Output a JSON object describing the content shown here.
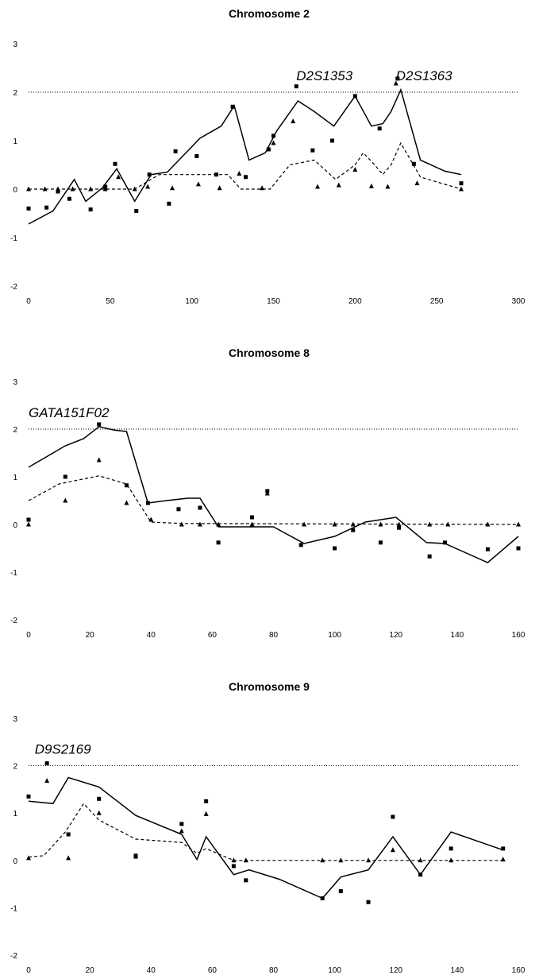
{
  "chart_data": [
    {
      "type": "line",
      "title": "Chromosome 2",
      "xlabel": "",
      "ylabel": "",
      "xlim": [
        0,
        300
      ],
      "ylim": [
        -2,
        3
      ],
      "xticks": [
        "0",
        "50",
        "100",
        "150",
        "200",
        "250",
        "300"
      ],
      "yticks": [
        "3",
        "2",
        "1",
        "0",
        "-1",
        "-2"
      ],
      "threshold": 2,
      "annotations": [
        {
          "text": "D2S1353",
          "x": 164,
          "y": 2.25
        },
        {
          "text": "D2S1363",
          "x": 225,
          "y": 2.25
        }
      ],
      "series": [
        {
          "style": "solid",
          "x": [
            0,
            15,
            28,
            35,
            45,
            54,
            65,
            75,
            85,
            105,
            118,
            126,
            135,
            145,
            152,
            165,
            175,
            187,
            200,
            210,
            217,
            222,
            228,
            240,
            255,
            265
          ],
          "y": [
            -0.72,
            -0.45,
            0.2,
            -0.25,
            0.02,
            0.42,
            -0.25,
            0.3,
            0.35,
            1.05,
            1.3,
            1.72,
            0.6,
            0.75,
            1.2,
            1.82,
            1.6,
            1.3,
            1.92,
            1.3,
            1.35,
            1.6,
            2.05,
            0.6,
            0.37,
            0.3
          ]
        },
        {
          "style": "dashed",
          "x": [
            0,
            28,
            35,
            45,
            54,
            65,
            80,
            90,
            100,
            115,
            122,
            130,
            140,
            148,
            160,
            175,
            188,
            200,
            205,
            212,
            217,
            222,
            228,
            240,
            265
          ],
          "y": [
            0,
            0,
            0,
            0,
            0,
            0,
            0.3,
            0.3,
            0.3,
            0.3,
            0.3,
            0,
            0,
            0,
            0.5,
            0.6,
            0.2,
            0.5,
            0.75,
            0.5,
            0.3,
            0.5,
            0.95,
            0.25,
            0
          ]
        },
        {
          "marker": "square",
          "x": [
            0,
            11,
            18,
            25,
            38,
            47,
            53,
            66,
            74,
            86,
            90,
            103,
            115,
            125,
            133,
            147,
            150,
            164,
            174,
            186,
            200,
            215,
            226,
            236,
            265
          ],
          "y": [
            -0.4,
            -0.38,
            -0.05,
            -0.2,
            -0.42,
            0.05,
            0.52,
            -0.45,
            0.3,
            -0.3,
            0.78,
            0.68,
            0.3,
            1.7,
            0.25,
            0.82,
            1.1,
            2.12,
            0.8,
            1.0,
            1.92,
            1.25,
            2.28,
            0.52,
            0.12
          ]
        },
        {
          "marker": "triangle",
          "x": [
            0,
            10,
            18,
            27,
            38,
            47,
            55,
            65,
            73,
            88,
            104,
            117,
            129,
            143,
            150,
            162,
            177,
            190,
            200,
            210,
            220,
            225,
            238,
            265
          ],
          "y": [
            0,
            0,
            0,
            0,
            0,
            0,
            0.25,
            0,
            0.05,
            0.02,
            0.1,
            0.02,
            0.32,
            0.02,
            0.95,
            1.4,
            0.05,
            0.08,
            0.4,
            0.06,
            0.05,
            2.18,
            0.12,
            0
          ]
        }
      ]
    },
    {
      "type": "line",
      "title": "Chromosome 8",
      "xlabel": "",
      "ylabel": "",
      "xlim": [
        0,
        160
      ],
      "ylim": [
        -2,
        3
      ],
      "xticks": [
        "0",
        "20",
        "40",
        "60",
        "80",
        "100",
        "120",
        "140",
        "160"
      ],
      "yticks": [
        "3",
        "2",
        "1",
        "0",
        "-1",
        "-2"
      ],
      "threshold": 2,
      "annotations": [
        {
          "text": "GATA151F02",
          "x": 0,
          "y": 2.25
        }
      ],
      "series": [
        {
          "style": "solid",
          "x": [
            0,
            12,
            18,
            23,
            28,
            32,
            39,
            45,
            52,
            56,
            62,
            70,
            80,
            90,
            100,
            110,
            120,
            130,
            136,
            150,
            160
          ],
          "y": [
            1.2,
            1.65,
            1.8,
            2.05,
            1.98,
            1.95,
            0.45,
            0.5,
            0.55,
            0.55,
            -0.05,
            -0.05,
            -0.05,
            -0.4,
            -0.25,
            0.05,
            0.15,
            -0.38,
            -0.4,
            -0.8,
            -0.25
          ]
        },
        {
          "style": "dashed",
          "x": [
            0,
            10,
            23,
            32,
            40,
            50,
            160
          ],
          "y": [
            0.5,
            0.85,
            1.02,
            0.85,
            0.05,
            0.02,
            0.0
          ]
        },
        {
          "marker": "square",
          "x": [
            0,
            12,
            23,
            32,
            39,
            49,
            56,
            62,
            73,
            78,
            89,
            100,
            106,
            115,
            121,
            131,
            136,
            150,
            160
          ],
          "y": [
            0.1,
            1.0,
            2.1,
            0.82,
            0.45,
            0.32,
            0.35,
            -0.38,
            0.15,
            0.7,
            -0.43,
            -0.5,
            -0.12,
            -0.38,
            -0.07,
            -0.67,
            -0.38,
            -0.52,
            -0.5
          ]
        },
        {
          "marker": "triangle",
          "x": [
            0,
            12,
            23,
            32,
            40,
            50,
            56,
            62,
            73,
            78,
            90,
            100,
            106,
            115,
            121,
            131,
            137,
            150,
            160
          ],
          "y": [
            0,
            0.5,
            1.35,
            0.45,
            0.1,
            0.0,
            0.0,
            0.0,
            0.0,
            0.65,
            0.0,
            0.0,
            0.0,
            0.0,
            0.0,
            0.0,
            0.0,
            0.0,
            0.0
          ]
        }
      ]
    },
    {
      "type": "line",
      "title": "Chromosome 9",
      "xlabel": "",
      "ylabel": "",
      "xlim": [
        0,
        160
      ],
      "ylim": [
        -2,
        3
      ],
      "xticks": [
        "0",
        "20",
        "40",
        "60",
        "80",
        "100",
        "120",
        "140",
        "160"
      ],
      "yticks": [
        "3",
        "2",
        "1",
        "0",
        "-1",
        "-2"
      ],
      "threshold": 2,
      "annotations": [
        {
          "text": "D9S2169",
          "x": 2,
          "y": 2.25
        }
      ],
      "series": [
        {
          "style": "solid",
          "x": [
            0,
            8,
            13,
            23,
            35,
            50,
            55,
            58,
            67,
            72,
            82,
            96,
            102,
            111,
            119,
            128,
            138,
            155
          ],
          "y": [
            1.25,
            1.2,
            1.75,
            1.55,
            0.95,
            0.55,
            0.02,
            0.5,
            -0.3,
            -0.2,
            -0.4,
            -0.8,
            -0.35,
            -0.2,
            0.5,
            -0.3,
            0.6,
            0.22
          ]
        },
        {
          "style": "dashed",
          "x": [
            0,
            5,
            12,
            18,
            23,
            35,
            50,
            55,
            58,
            67,
            155
          ],
          "y": [
            0.07,
            0.1,
            0.6,
            1.2,
            0.85,
            0.45,
            0.38,
            0.15,
            0.25,
            0.0,
            0.0
          ]
        },
        {
          "marker": "square",
          "x": [
            0,
            6,
            13,
            23,
            35,
            50,
            58,
            67,
            71,
            96,
            102,
            111,
            119,
            128,
            138,
            155
          ],
          "y": [
            1.35,
            2.05,
            0.55,
            1.3,
            0.1,
            0.77,
            1.25,
            -0.12,
            -0.42,
            -0.8,
            -0.65,
            -0.88,
            0.92,
            -0.3,
            0.25,
            0.25
          ]
        },
        {
          "marker": "triangle",
          "x": [
            0,
            6,
            13,
            23,
            35,
            50,
            58,
            67,
            71,
            96,
            102,
            111,
            119,
            128,
            138,
            155
          ],
          "y": [
            0.05,
            1.68,
            0.05,
            1.0,
            0.08,
            0.62,
            0.98,
            0.0,
            0.0,
            0.0,
            0.0,
            0.0,
            0.22,
            0.0,
            0.0,
            0.02
          ]
        }
      ]
    }
  ]
}
